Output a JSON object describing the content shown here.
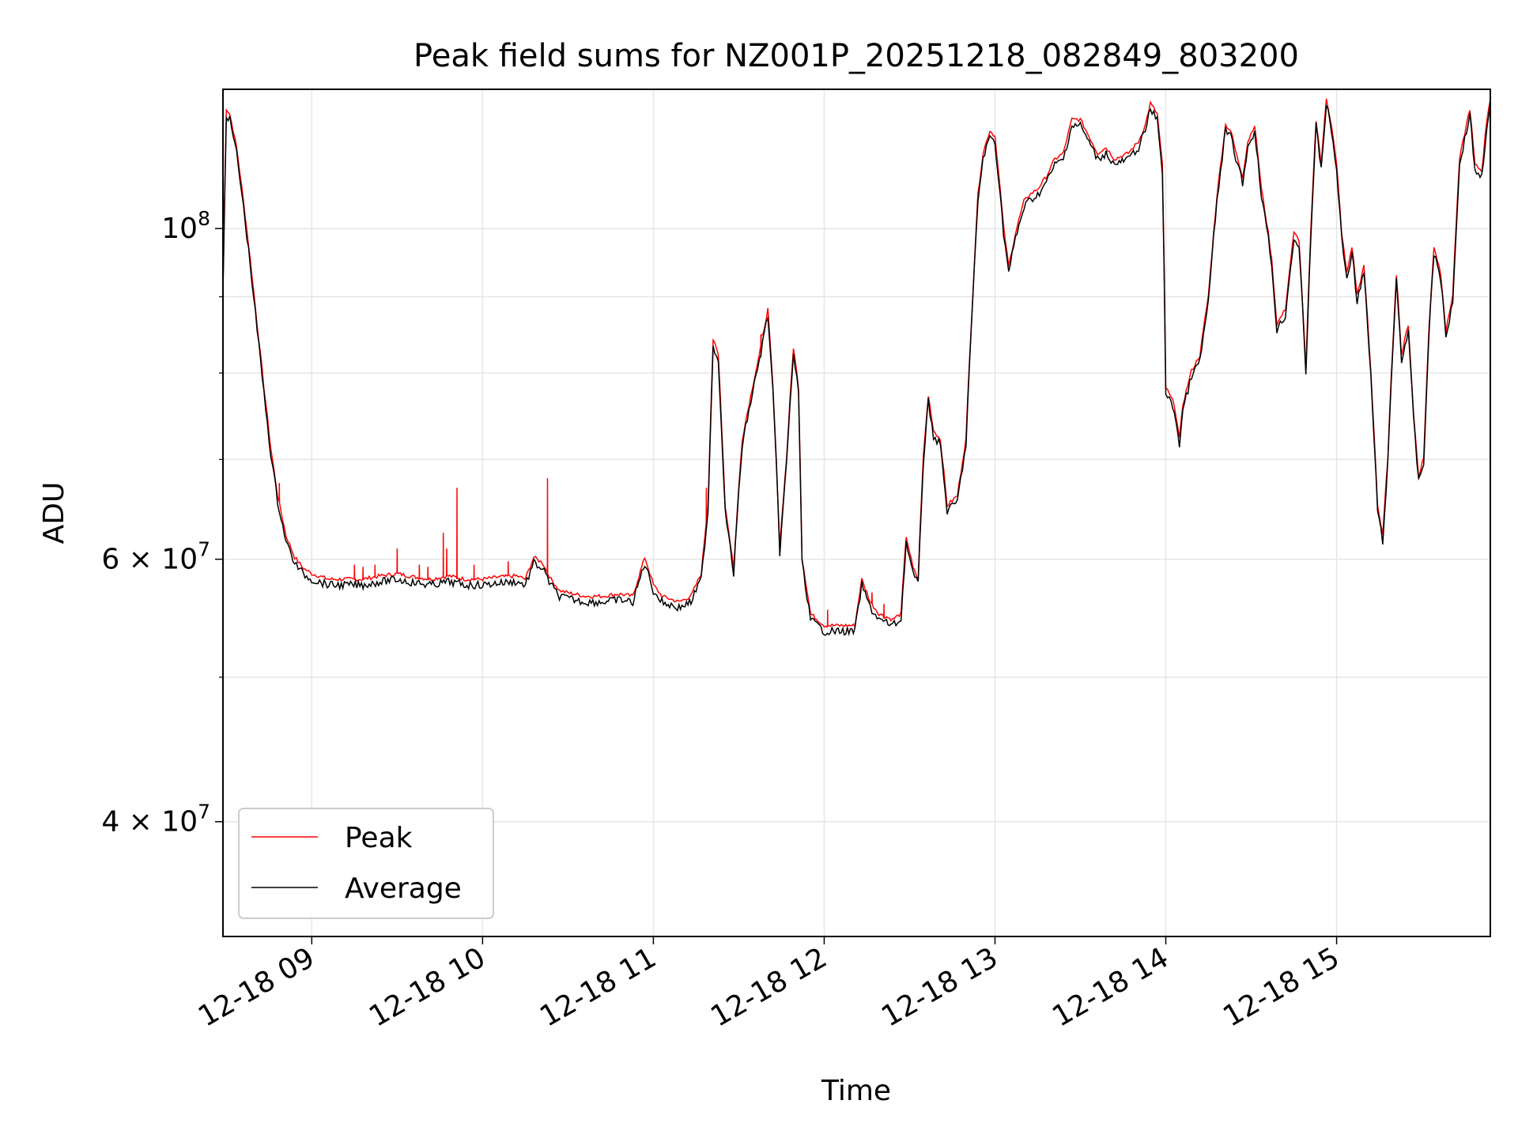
{
  "chart_data": {
    "type": "line",
    "title": "Peak field sums for NZ001P_20251218_082849_803200",
    "xlabel": "Time",
    "ylabel": "ADU",
    "x_range_hours": [
      8.48,
      15.9
    ],
    "ylim": [
      33500000,
      124000000
    ],
    "y_scale": "log",
    "grid": true,
    "legend_position": "lower-left",
    "x_ticks": [
      {
        "value": 9,
        "label": "12-18 09"
      },
      {
        "value": 10,
        "label": "12-18 10"
      },
      {
        "value": 11,
        "label": "12-18 11"
      },
      {
        "value": 12,
        "label": "12-18 12"
      },
      {
        "value": 13,
        "label": "12-18 13"
      },
      {
        "value": 14,
        "label": "12-18 14"
      },
      {
        "value": 15,
        "label": "12-18 15"
      }
    ],
    "y_major_ticks": [
      {
        "value": 40000000,
        "base": "4",
        "exp": "7"
      },
      {
        "value": 60000000,
        "base": "6",
        "exp": "7"
      },
      {
        "value": 100000000,
        "base": "",
        "exp": "8"
      }
    ],
    "y_minor_ticks": [
      50000000,
      70000000,
      80000000,
      90000000
    ],
    "colors": {
      "peak": "#ff0000",
      "average": "#000000",
      "grid": "#e6e6e6"
    },
    "series": [
      {
        "name": "Average",
        "color": "#000000",
        "points": [
          [
            8.48,
            91
          ],
          [
            8.5,
            120
          ],
          [
            8.52,
            119
          ],
          [
            8.56,
            113
          ],
          [
            8.6,
            104
          ],
          [
            8.64,
            95
          ],
          [
            8.68,
            86
          ],
          [
            8.72,
            78
          ],
          [
            8.76,
            71
          ],
          [
            8.8,
            66
          ],
          [
            8.85,
            62
          ],
          [
            8.9,
            60
          ],
          [
            8.95,
            59
          ],
          [
            9.0,
            58.5
          ],
          [
            9.1,
            58
          ],
          [
            9.2,
            58
          ],
          [
            9.3,
            58
          ],
          [
            9.4,
            58.3
          ],
          [
            9.5,
            58.5
          ],
          [
            9.6,
            58.2
          ],
          [
            9.7,
            58
          ],
          [
            9.8,
            58.3
          ],
          [
            9.9,
            58
          ],
          [
            10.0,
            58
          ],
          [
            10.1,
            58.2
          ],
          [
            10.2,
            58.3
          ],
          [
            10.25,
            58
          ],
          [
            10.3,
            60
          ],
          [
            10.35,
            59.5
          ],
          [
            10.4,
            58
          ],
          [
            10.45,
            57
          ],
          [
            10.5,
            56.8
          ],
          [
            10.6,
            56.5
          ],
          [
            10.7,
            56.5
          ],
          [
            10.8,
            56.7
          ],
          [
            10.88,
            56.5
          ],
          [
            10.95,
            60
          ],
          [
            11.0,
            57.5
          ],
          [
            11.05,
            56.5
          ],
          [
            11.15,
            56
          ],
          [
            11.22,
            56.5
          ],
          [
            11.28,
            58.5
          ],
          [
            11.32,
            65
          ],
          [
            11.35,
            84
          ],
          [
            11.38,
            82
          ],
          [
            11.42,
            65
          ],
          [
            11.47,
            59
          ],
          [
            11.52,
            72
          ],
          [
            11.58,
            78
          ],
          [
            11.62,
            82
          ],
          [
            11.67,
            88
          ],
          [
            11.7,
            78
          ],
          [
            11.74,
            61
          ],
          [
            11.78,
            70
          ],
          [
            11.82,
            83
          ],
          [
            11.85,
            78
          ],
          [
            11.87,
            60
          ],
          [
            11.92,
            55
          ],
          [
            12.0,
            54
          ],
          [
            12.1,
            54
          ],
          [
            12.18,
            54
          ],
          [
            12.22,
            58
          ],
          [
            12.27,
            56
          ],
          [
            12.32,
            55
          ],
          [
            12.4,
            54.5
          ],
          [
            12.45,
            55
          ],
          [
            12.48,
            62
          ],
          [
            12.52,
            59
          ],
          [
            12.55,
            58
          ],
          [
            12.58,
            70
          ],
          [
            12.61,
            77
          ],
          [
            12.64,
            73
          ],
          [
            12.68,
            72
          ],
          [
            12.72,
            65
          ],
          [
            12.78,
            66
          ],
          [
            12.83,
            72
          ],
          [
            12.87,
            90
          ],
          [
            12.9,
            105
          ],
          [
            12.93,
            112
          ],
          [
            12.97,
            116
          ],
          [
            13.0,
            115
          ],
          [
            13.05,
            100
          ],
          [
            13.08,
            94
          ],
          [
            13.12,
            99
          ],
          [
            13.17,
            104
          ],
          [
            13.2,
            105
          ],
          [
            13.25,
            106
          ],
          [
            13.3,
            108
          ],
          [
            13.35,
            111
          ],
          [
            13.4,
            112
          ],
          [
            13.45,
            118
          ],
          [
            13.5,
            118
          ],
          [
            13.55,
            115
          ],
          [
            13.6,
            112
          ],
          [
            13.65,
            113
          ],
          [
            13.7,
            111
          ],
          [
            13.78,
            112
          ],
          [
            13.84,
            114
          ],
          [
            13.88,
            117
          ],
          [
            13.91,
            121
          ],
          [
            13.95,
            119
          ],
          [
            13.98,
            110
          ],
          [
            14.0,
            78
          ],
          [
            14.05,
            76
          ],
          [
            14.08,
            72
          ],
          [
            14.1,
            76
          ],
          [
            14.15,
            80
          ],
          [
            14.2,
            82
          ],
          [
            14.25,
            90
          ],
          [
            14.3,
            105
          ],
          [
            14.35,
            117
          ],
          [
            14.38,
            116
          ],
          [
            14.42,
            111
          ],
          [
            14.45,
            108
          ],
          [
            14.48,
            114
          ],
          [
            14.52,
            117
          ],
          [
            14.56,
            106
          ],
          [
            14.6,
            99
          ],
          [
            14.62,
            95
          ],
          [
            14.65,
            86
          ],
          [
            14.7,
            88
          ],
          [
            14.75,
            99
          ],
          [
            14.78,
            98
          ],
          [
            14.82,
            80
          ],
          [
            14.85,
            100
          ],
          [
            14.88,
            118
          ],
          [
            14.91,
            110
          ],
          [
            14.94,
            122
          ],
          [
            14.97,
            117
          ],
          [
            15.0,
            110
          ],
          [
            15.03,
            99
          ],
          [
            15.06,
            93
          ],
          [
            15.09,
            97
          ],
          [
            15.12,
            90
          ],
          [
            15.16,
            94
          ],
          [
            15.2,
            80
          ],
          [
            15.24,
            65
          ],
          [
            15.27,
            62
          ],
          [
            15.3,
            70
          ],
          [
            15.35,
            93
          ],
          [
            15.38,
            82
          ],
          [
            15.42,
            86
          ],
          [
            15.45,
            75
          ],
          [
            15.48,
            68
          ],
          [
            15.51,
            70
          ],
          [
            15.54,
            85
          ],
          [
            15.57,
            97
          ],
          [
            15.61,
            93
          ],
          [
            15.64,
            85
          ],
          [
            15.68,
            90
          ],
          [
            15.72,
            111
          ],
          [
            15.76,
            117
          ],
          [
            15.78,
            120
          ],
          [
            15.81,
            110
          ],
          [
            15.85,
            109
          ],
          [
            15.88,
            118
          ],
          [
            15.9,
            122
          ]
        ]
      },
      {
        "name": "Peak",
        "color": "#ff0000",
        "spikes": [
          [
            8.81,
            67.5
          ],
          [
            9.25,
            59.5
          ],
          [
            9.3,
            59.3
          ],
          [
            9.37,
            59.5
          ],
          [
            9.5,
            61
          ],
          [
            9.63,
            59.5
          ],
          [
            9.68,
            59.3
          ],
          [
            9.77,
            62.5
          ],
          [
            9.79,
            61
          ],
          [
            9.85,
            67
          ],
          [
            9.95,
            59.5
          ],
          [
            10.15,
            59.8
          ],
          [
            10.38,
            68
          ],
          [
            11.31,
            67
          ],
          [
            11.63,
            82
          ],
          [
            12.02,
            55.5
          ],
          [
            12.28,
            57
          ],
          [
            12.35,
            56
          ]
        ]
      }
    ]
  }
}
